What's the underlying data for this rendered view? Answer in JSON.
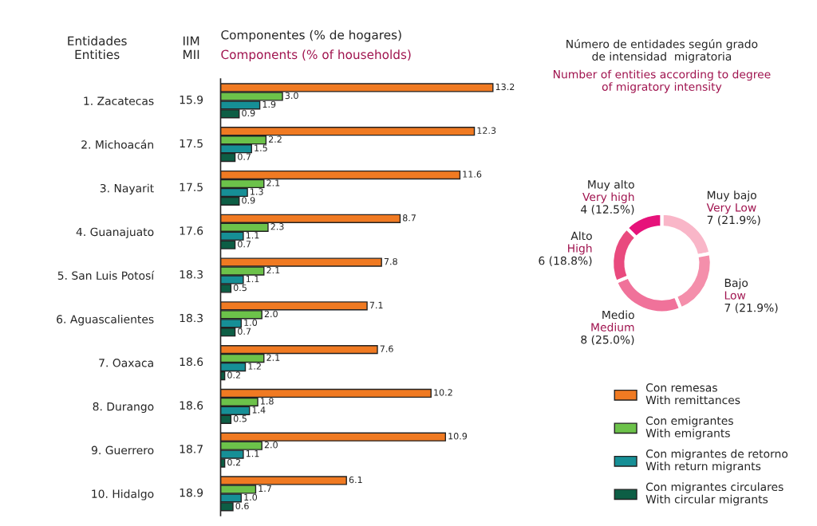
{
  "chart_data": [
    {
      "type": "bar",
      "orientation": "horizontal",
      "title": "Componentes (% de hogares)",
      "subtitle": "Components (% of households)",
      "ylabel": "Entidades\nEntities",
      "categories": [
        "1. Zacatecas",
        "2. Michoacán",
        "3. Nayarit",
        "4. Guanajuato",
        "5. San Luis Potosí",
        "6. Aguascalientes",
        "7. Oaxaca",
        "8. Durango",
        "9. Guerrero",
        "10. Hidalgo"
      ],
      "series": [
        {
          "name": "Con remesas\nWith remittances",
          "color": "#f07a22",
          "values": [
            13.2,
            12.3,
            11.6,
            8.7,
            7.8,
            7.1,
            7.6,
            10.2,
            10.9,
            6.1
          ],
          "value_labels": [
            "13.2",
            "12.3",
            "11.6",
            "8.7",
            "7.8",
            "7.1",
            "7.6",
            "10.2",
            "10.9",
            "6.1"
          ]
        },
        {
          "name": "Con emigrantes\nWith emigrants",
          "color": "#6cc24a",
          "values": [
            3.0,
            2.2,
            2.1,
            2.3,
            2.1,
            2.0,
            2.1,
            1.8,
            2.0,
            1.7
          ],
          "value_labels": [
            "3.0",
            "2.2",
            "2.1",
            "2.3",
            "2.1",
            "2.0",
            "2.1",
            "1.8",
            "2.0",
            "1.7"
          ]
        },
        {
          "name": "Con migrantes de retorno\nWith return migrants",
          "color": "#168f96",
          "values": [
            1.9,
            1.5,
            1.3,
            1.1,
            1.1,
            1.0,
            1.2,
            1.4,
            1.1,
            1.0
          ],
          "value_labels": [
            "1.9",
            "1.5",
            "1.3",
            "1.1",
            "1.1",
            "1.0",
            "1.2",
            "1.4",
            "1.1",
            "1.0"
          ]
        },
        {
          "name": "Con migrantes circulares\nWith circular migrants",
          "color": "#0d5e45",
          "values": [
            0.9,
            0.7,
            0.9,
            0.7,
            0.5,
            0.7,
            0.2,
            0.5,
            0.2,
            0.6
          ],
          "value_labels": [
            "0.9",
            "0.7",
            "0.9",
            "0.7",
            "0.5",
            "0.7",
            "0.2",
            "0.5",
            "0.2",
            "0.6"
          ]
        }
      ],
      "annotations": [
        "IIM\nMII",
        "15.9",
        "17.5",
        "17.5",
        "17.6",
        "18.3",
        "18.3",
        "18.6",
        "18.6",
        "18.7",
        "18.9"
      ],
      "legend": "bottom right",
      "tick_labels": "y"
    },
    {
      "type": "donut",
      "title": "Número de entidades según grado\nde intensidad  migratoria",
      "subtitle": "Number of entities according to degree\nof migratory intensity",
      "categories": [
        "Muy bajo\nVery Low",
        "Bajo\nLow",
        "Medio\nMedium",
        "Alto\nHigh",
        "Muy alto\nVery high"
      ],
      "values": [
        7,
        7,
        8,
        6,
        4
      ],
      "value_labels": [
        "7 (21.9%)",
        "7 (21.9%)",
        "8 (25.0%)",
        "6 (18.8%)",
        "4 (12.5%)"
      ],
      "colors": [
        "#f9b6c8",
        "#f48fab",
        "#f0729a",
        "#e94a7e",
        "#e6127a"
      ]
    }
  ]
}
